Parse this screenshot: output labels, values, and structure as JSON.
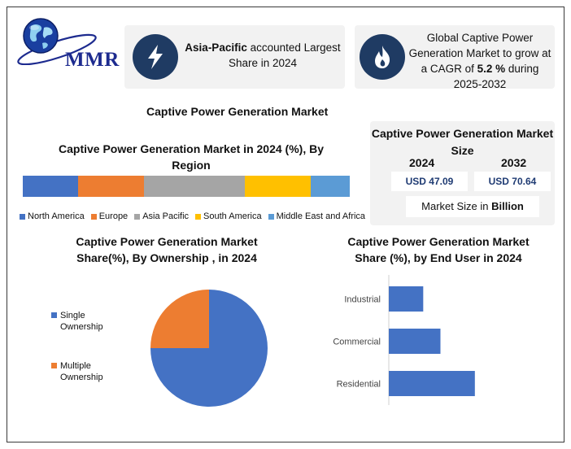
{
  "brand": {
    "logo_text": "MMR"
  },
  "highlights": [
    {
      "icon": "lightning-bolt-icon",
      "bold": "Asia-Pacific",
      "text": " accounted Largest Share in 2024"
    },
    {
      "icon": "flame-icon",
      "text_before": "Global Captive Power Generation Market to grow at a CAGR of ",
      "bold": "5.2 %",
      "text_after": " during 2025-2032"
    }
  ],
  "main_title": "Captive Power Generation Market",
  "market_size": {
    "title": "Captive Power Generation Market Size",
    "year1": "2024",
    "year2": "2032",
    "value1": "USD 47.09",
    "value2": "USD 70.64",
    "unit_prefix": "Market Size in ",
    "unit_bold": "Billion"
  },
  "colors": {
    "blue": "#4472c4",
    "orange": "#ed7d31",
    "gray": "#a5a5a5",
    "yellow": "#ffc000",
    "light_blue": "#5b9bd5",
    "icon_bg": "#1f3b63"
  },
  "chart_data": [
    {
      "type": "bar",
      "orientation": "horizontal-stacked",
      "title": "Captive Power Generation Market in 2024 (%), By Region",
      "series": [
        {
          "name": "North America",
          "values": [
            17
          ]
        },
        {
          "name": "Europe",
          "values": [
            20
          ]
        },
        {
          "name": "Asia Pacific",
          "values": [
            31
          ]
        },
        {
          "name": "South America",
          "values": [
            20
          ]
        },
        {
          "name": "Middle East and Africa",
          "values": [
            12
          ]
        }
      ],
      "legend": "bottom"
    },
    {
      "type": "pie",
      "title": "Captive Power Generation Market Share(%), By Ownership , in 2024",
      "labels": [
        "Single Ownership",
        "Multiple Ownership"
      ],
      "values": [
        75,
        25
      ],
      "legend": "left"
    },
    {
      "type": "bar",
      "orientation": "horizontal",
      "title": "Captive Power Generation Market Share (%), by  End User in 2024",
      "categories": [
        "Industrial",
        "Commercial",
        "Residential"
      ],
      "values": [
        20,
        30,
        50
      ]
    }
  ]
}
